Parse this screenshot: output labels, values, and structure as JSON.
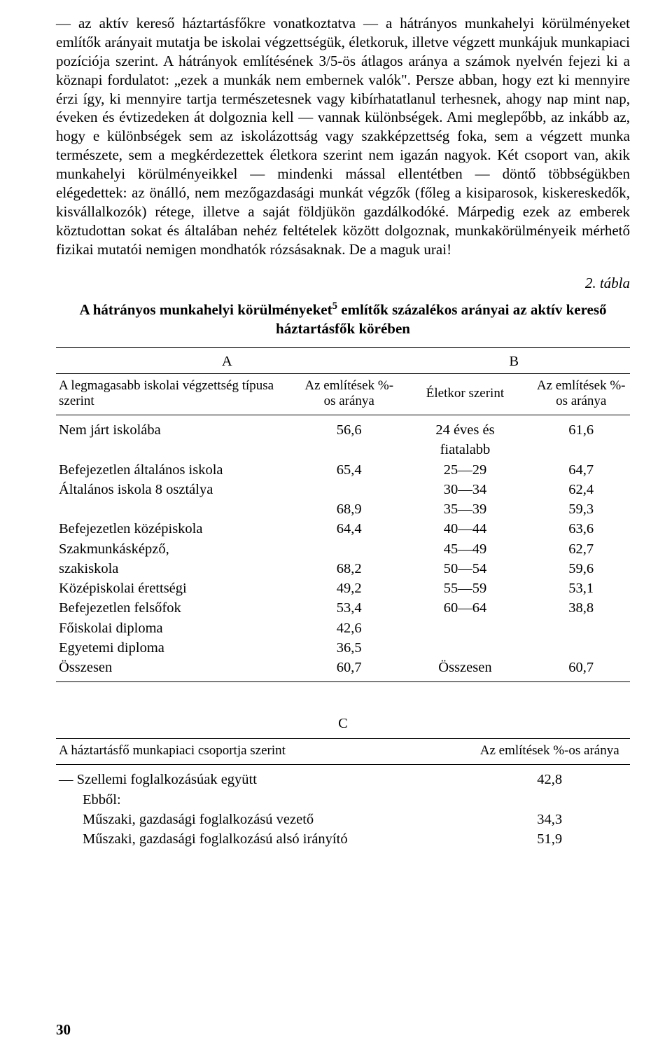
{
  "paragraph": "— az aktív kereső háztartásfőkre vonatkoztatva — a hátrányos munkahelyi körülményeket említők arányait mutatja be iskolai végzettségük, életkoruk, illetve végzett munkájuk munkapiaci pozíciója szerint. A hátrányok említésének 3/5-ös átlagos aránya a számok nyelvén fejezi ki a köznapi fordulatot: „ezek a munkák nem embernek valók\". Persze abban, hogy ezt ki mennyire érzi így, ki mennyire tartja természetesnek vagy kibírhatatlanul terhesnek, ahogy nap mint nap, éveken és évtizedeken át dolgoznia kell — vannak különbségek. Ami meglepőbb, az inkább az, hogy e különbségek sem az iskolázottság vagy szakképzettség foka, sem a végzett munka természete, sem a megkérdezettek életkora szerint nem igazán nagyok. Két csoport van, akik munkahelyi körülményeikkel — mindenki mással ellentétben — döntő többségükben elégedettek: az önálló, nem mezőgazdasági munkát végzők (főleg a kisiparosok, kiskereskedők, kisvállalkozók) rétege, illetve a saját földjükön gazdálkodóké. Márpedig ezek az emberek köztudottan sokat és általában nehéz feltételek között dolgoznak, munkakörülményeik mérhető fizikai mutatói nemigen mondhatók rózsásaknak. De a maguk urai!",
  "table_number": "2. tábla",
  "table_title_1": "A hátrányos munkahelyi körülményeket",
  "table_title_sup": "5",
  "table_title_2": " említők százalékos arányai az aktív kereső háztartásfők körében",
  "section_a": "A",
  "section_b": "B",
  "section_c": "C",
  "header_a_desc": "A legmagasabb iskolai végzettség típusa szerint",
  "header_mention": "Az említések %-os aránya",
  "header_age": "Életkor szerint",
  "header_c_desc": "A háztartásfő munkapiaci csoportja szerint",
  "rows_ab": [
    {
      "a": "Nem járt iskolába",
      "av": "56,6",
      "b": "24 éves és",
      "bv": "61,6"
    },
    {
      "a": "",
      "av": "",
      "b": "fiatalabb",
      "bv": ""
    },
    {
      "a": "Befejezetlen általános iskola",
      "av": "65,4",
      "b": "25—29",
      "bv": "64,7"
    },
    {
      "a": "Általános iskola 8 osztálya",
      "av": "",
      "b": "30—34",
      "bv": "62,4"
    },
    {
      "a": "",
      "av": "68,9",
      "b": "35—39",
      "bv": "59,3"
    },
    {
      "a": "Befejezetlen középiskola",
      "av": "64,4",
      "b": "40—44",
      "bv": "63,6"
    },
    {
      "a": "Szakmunkásképző,",
      "av": "",
      "b": "45—49",
      "bv": "62,7"
    },
    {
      "a": "szakiskola",
      "av": "68,2",
      "b": "50—54",
      "bv": "59,6"
    },
    {
      "a": "Középiskolai érettségi",
      "av": "49,2",
      "b": "55—59",
      "bv": "53,1"
    },
    {
      "a": "Befejezetlen felsőfok",
      "av": "53,4",
      "b": "60—64",
      "bv": "38,8"
    },
    {
      "a": "Főiskolai diploma",
      "av": "42,6",
      "b": "",
      "bv": ""
    },
    {
      "a": "Egyetemi diploma",
      "av": "36,5",
      "b": "",
      "bv": ""
    },
    {
      "a": "Összesen",
      "av": "60,7",
      "b": "Összesen",
      "bv": "60,7"
    }
  ],
  "rows_c": [
    {
      "label": "— Szellemi foglalkozásúak együtt",
      "v": "42,8",
      "indent": false
    },
    {
      "label": "Ebből:",
      "v": "",
      "indent": true
    },
    {
      "label": "Műszaki, gazdasági foglalkozású vezető",
      "v": "34,3",
      "indent": true
    },
    {
      "label": "Műszaki, gazdasági foglalkozású alsó irányító",
      "v": "51,9",
      "indent": true
    }
  ],
  "page_number": "30"
}
